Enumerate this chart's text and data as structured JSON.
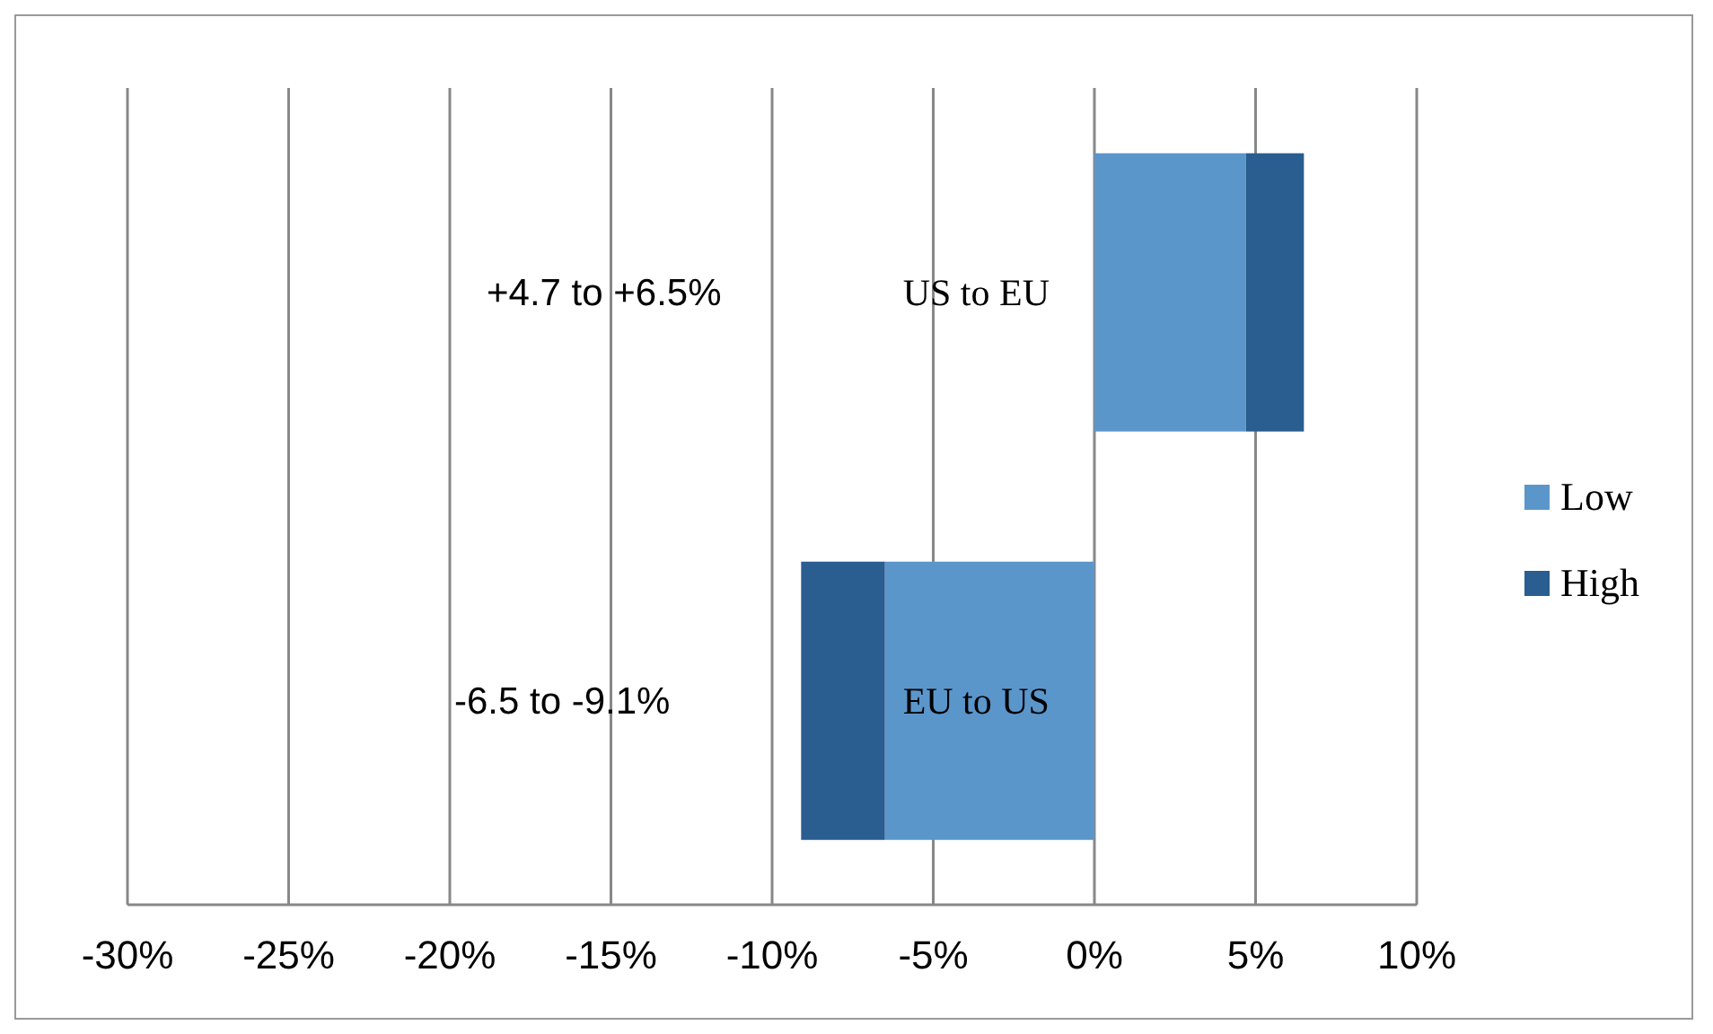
{
  "chart_data": {
    "type": "bar",
    "orientation": "horizontal",
    "stacked": true,
    "categories": [
      "US to EU",
      "EU to US"
    ],
    "series": [
      {
        "name": "Low",
        "color": "#5b96cb",
        "values": [
          4.7,
          -6.5
        ]
      },
      {
        "name": "High",
        "color": "#2a5d90",
        "values": [
          1.8,
          -2.6
        ]
      }
    ],
    "xlim": [
      -30,
      10
    ],
    "xticks": [
      {
        "value": -30,
        "label": "-30%"
      },
      {
        "value": -25,
        "label": "-25%"
      },
      {
        "value": -20,
        "label": "-20%"
      },
      {
        "value": -15,
        "label": "-15%"
      },
      {
        "value": -10,
        "label": "-10%"
      },
      {
        "value": -5,
        "label": "-5%"
      },
      {
        "value": 0,
        "label": "0%"
      },
      {
        "value": 5,
        "label": "5%"
      },
      {
        "value": 10,
        "label": "10%"
      }
    ],
    "grid": "x",
    "legend": "right",
    "annotations": [
      "+4.7 to +6.5%",
      "-6.5 to -9.1%"
    ]
  }
}
